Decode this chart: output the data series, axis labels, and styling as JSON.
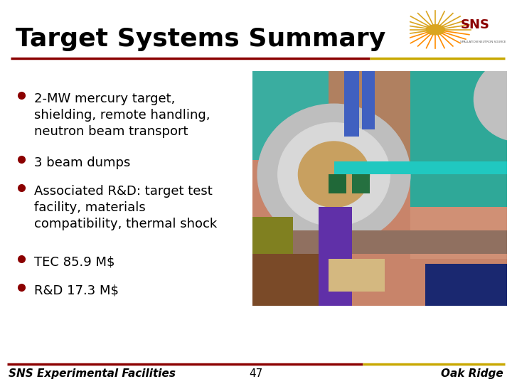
{
  "title": "Target Systems Summary",
  "title_fontsize": 26,
  "title_color": "#000000",
  "bullet_points": [
    "2-MW mercury target,\nshielding, remote handling,\nneutron beam transport",
    "3 beam dumps",
    "Associated R&D: target test\nfacility, materials\ncompatibility, thermal shock",
    "TEC 85.9 M$",
    "R&D 17.3 M$"
  ],
  "bullet_color": "#8B0000",
  "bullet_text_color": "#000000",
  "bullet_fontsize": 13,
  "background_color": "#ffffff",
  "title_line_color_left": "#8B0000",
  "title_line_color_right": "#C8A800",
  "footer_left": "SNS Experimental Facilities",
  "footer_center": "47",
  "footer_right": "Oak Ridge",
  "footer_fontsize": 11,
  "footer_color": "#000000",
  "footer_line_color_left": "#8B0000",
  "footer_line_color_right": "#C8A800"
}
